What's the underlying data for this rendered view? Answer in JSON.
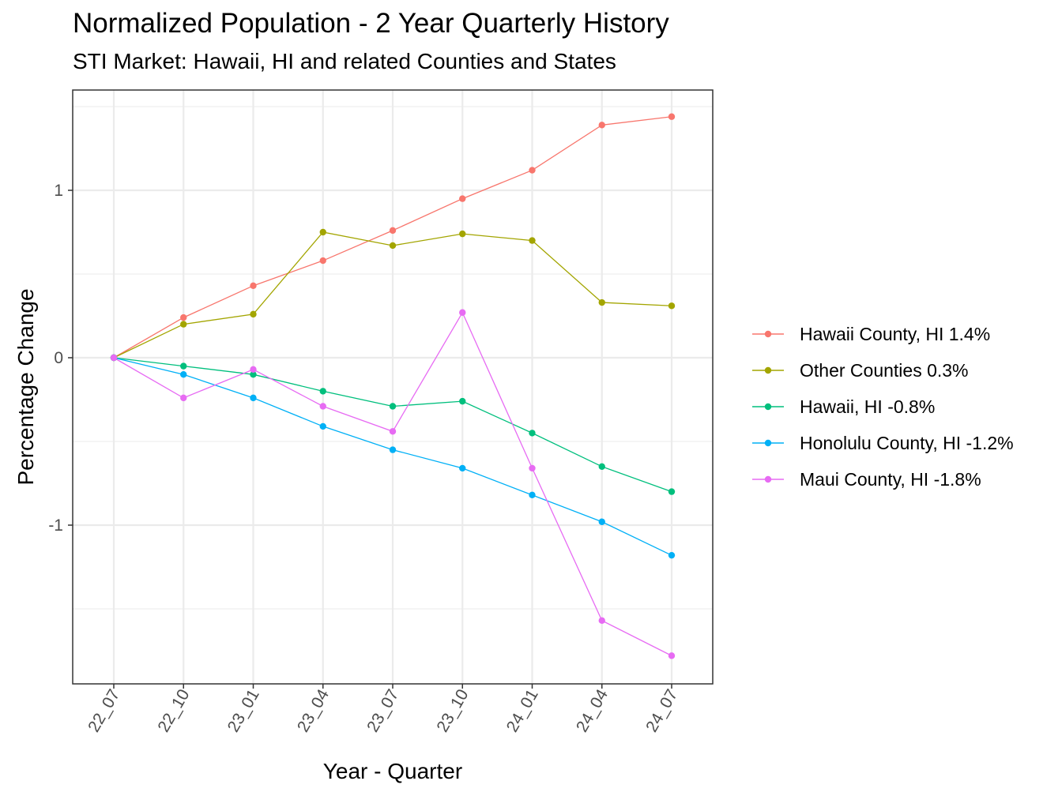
{
  "chart_data": {
    "type": "line",
    "title": "Normalized Population - 2 Year Quarterly History",
    "subtitle": "STI Market: Hawaii, HI and related Counties and States",
    "xlabel": "Year - Quarter",
    "ylabel": "Percentage Change",
    "categories": [
      "22_07",
      "22_10",
      "23_01",
      "23_04",
      "23_07",
      "23_10",
      "24_01",
      "24_04",
      "24_07"
    ],
    "ylim": [
      -1.95,
      1.55
    ],
    "yticks": [
      -1,
      0,
      1
    ],
    "yticks_minor": [
      -1.5,
      -0.5,
      0.5,
      1.5
    ],
    "grid": true,
    "legend_position": "right",
    "series": [
      {
        "name": "Hawaii County, HI 1.4%",
        "color": "#F8766D",
        "values": [
          0,
          0.24,
          0.43,
          0.58,
          0.76,
          0.95,
          1.12,
          1.39,
          1.44
        ]
      },
      {
        "name": "Other Counties 0.3%",
        "color": "#A3A500",
        "values": [
          0,
          0.2,
          0.26,
          0.75,
          0.67,
          0.74,
          0.7,
          0.33,
          0.31
        ]
      },
      {
        "name": "Hawaii, HI -0.8%",
        "color": "#00BF7D",
        "values": [
          0,
          -0.05,
          -0.1,
          -0.2,
          -0.29,
          -0.26,
          -0.45,
          -0.65,
          -0.8
        ]
      },
      {
        "name": "Honolulu County, HI -1.2%",
        "color": "#00B0F6",
        "values": [
          0,
          -0.1,
          -0.24,
          -0.41,
          -0.55,
          -0.66,
          -0.82,
          -0.98,
          -1.18
        ]
      },
      {
        "name": "Maui County, HI -1.8%",
        "color": "#E76BF3",
        "values": [
          0,
          -0.24,
          -0.07,
          -0.29,
          -0.44,
          0.27,
          -0.66,
          -1.57,
          -1.78
        ]
      }
    ]
  }
}
